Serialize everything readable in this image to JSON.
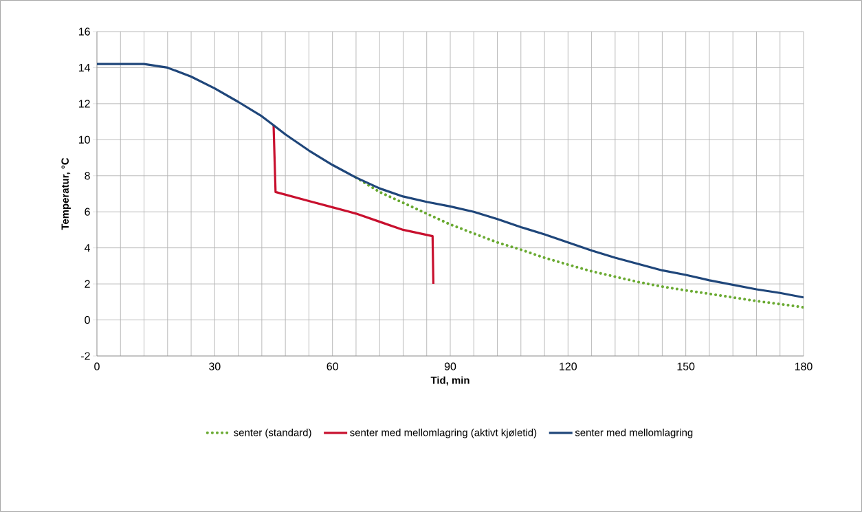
{
  "chart_data": {
    "type": "line",
    "xlabel": "Tid, min",
    "ylabel": "Temperatur, °C",
    "xlim": [
      0,
      180
    ],
    "ylim": [
      -2,
      16
    ],
    "xticks": [
      0,
      {
        "value": 6,
        "label": null
      },
      {
        "value": 12,
        "label": null
      },
      {
        "value": 18,
        "label": null
      },
      {
        "value": 24,
        "label": null
      },
      30,
      {
        "value": 36,
        "label": null
      },
      {
        "value": 42,
        "label": null
      },
      {
        "value": 48,
        "label": null
      },
      {
        "value": 54,
        "label": null
      },
      60,
      {
        "value": 66,
        "label": null
      },
      {
        "value": 72,
        "label": null
      },
      {
        "value": 78,
        "label": null
      },
      {
        "value": 84,
        "label": null
      },
      90,
      {
        "value": 96,
        "label": null
      },
      {
        "value": 102,
        "label": null
      },
      {
        "value": 108,
        "label": null
      },
      {
        "value": 114,
        "label": null
      },
      120,
      {
        "value": 126,
        "label": null
      },
      {
        "value": 132,
        "label": null
      },
      {
        "value": 138,
        "label": null
      },
      {
        "value": 144,
        "label": null
      },
      150,
      {
        "value": 156,
        "label": null
      },
      {
        "value": 162,
        "label": null
      },
      {
        "value": 168,
        "label": null
      },
      {
        "value": 174,
        "label": null
      },
      180
    ],
    "yticks": [
      -2,
      0,
      2,
      4,
      6,
      8,
      10,
      12,
      14,
      16
    ],
    "grid": true,
    "legend": "bottom",
    "marker": "none",
    "series": [
      {
        "name": "senter (standard)",
        "color": "#6aaa32",
        "line_style": "dotted",
        "x": [
          66,
          72,
          78,
          84,
          90,
          96,
          102,
          108,
          114,
          120,
          126,
          132,
          138,
          144,
          150,
          156,
          162,
          168,
          174,
          180
        ],
        "values": [
          7.9,
          7.1,
          6.5,
          5.9,
          5.3,
          4.8,
          4.3,
          3.9,
          3.45,
          3.07,
          2.7,
          2.4,
          2.1,
          1.85,
          1.64,
          1.45,
          1.25,
          1.05,
          0.88,
          0.7
        ]
      },
      {
        "name": "senter med mellomlagring (aktivt kjøletid)",
        "color": "#c8102e",
        "line_style": "solid",
        "x": [
          45,
          45.5,
          54,
          60,
          66,
          72,
          78,
          85.5,
          85.7
        ],
        "values": [
          10.8,
          7.1,
          6.6,
          6.25,
          5.9,
          5.45,
          5.0,
          4.65,
          2.0
        ]
      },
      {
        "name": "senter med mellomlagring",
        "color": "#1f467a",
        "line_style": "solid",
        "x": [
          0,
          6,
          12,
          18,
          24,
          30,
          36,
          42,
          45,
          48,
          54,
          60,
          66,
          72,
          78,
          84,
          90,
          96,
          102,
          108,
          114,
          120,
          126,
          132,
          138,
          144,
          150,
          156,
          162,
          168,
          174,
          180
        ],
        "values": [
          14.2,
          14.2,
          14.2,
          14.0,
          13.5,
          12.85,
          12.1,
          11.3,
          10.8,
          10.3,
          9.4,
          8.6,
          7.9,
          7.3,
          6.85,
          6.55,
          6.3,
          6.0,
          5.6,
          5.15,
          4.75,
          4.3,
          3.85,
          3.45,
          3.1,
          2.75,
          2.5,
          2.2,
          1.95,
          1.7,
          1.5,
          1.25
        ]
      }
    ]
  }
}
